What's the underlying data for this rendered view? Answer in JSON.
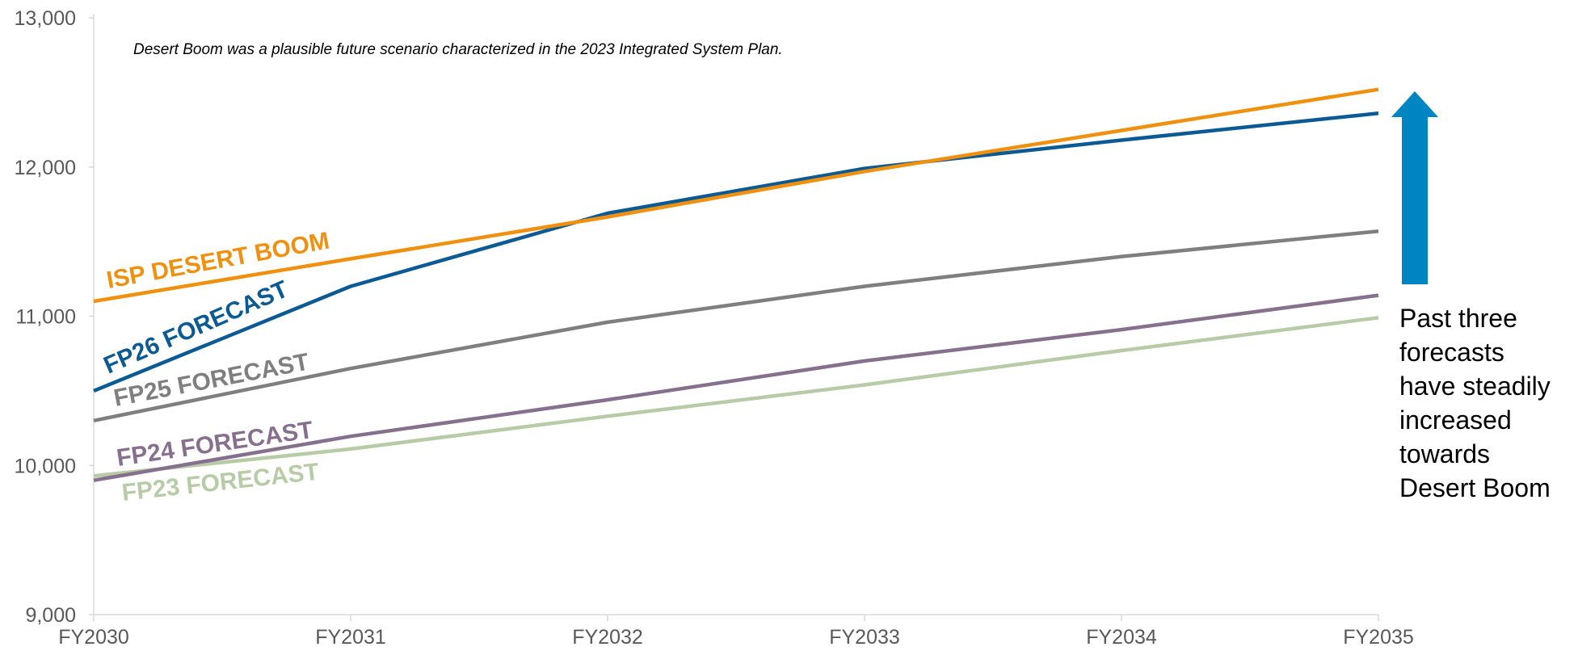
{
  "chart_data": {
    "type": "line",
    "categories": [
      "FY2030",
      "FY2031",
      "FY2032",
      "FY2033",
      "FY2034",
      "FY2035"
    ],
    "ylim": [
      9000,
      13000
    ],
    "yticks": [
      "9,000",
      "10,000",
      "11,000",
      "12,000",
      "13,000"
    ],
    "ytick_values": [
      9000,
      10000,
      11000,
      12000,
      13000
    ],
    "grid": false,
    "annotation": "Desert Boom was a plausible future scenario characterized in the 2023 Integrated System Plan.",
    "callout_lines": [
      "Past three",
      "forecasts",
      "have steadily",
      "increased",
      "towards",
      "Desert Boom"
    ],
    "arrow_color": "#0085C3",
    "series": [
      {
        "name": "ISP DESERT BOOM",
        "color": "#F0900F",
        "values": [
          11100,
          11385,
          11665,
          11970,
          12245,
          12520
        ]
      },
      {
        "name": "FP26 FORECAST",
        "color": "#0C5A94",
        "values": [
          10500,
          11200,
          11690,
          11990,
          12180,
          12360
        ]
      },
      {
        "name": "FP25 FORECAST",
        "color": "#7F7F7F",
        "values": [
          10300,
          10650,
          10960,
          11200,
          11400,
          11570
        ]
      },
      {
        "name": "FP24 FORECAST",
        "color": "#87708E",
        "values": [
          9900,
          10195,
          10440,
          10700,
          10910,
          11140
        ]
      },
      {
        "name": "FP23 FORECAST",
        "color": "#B8CBA7",
        "values": [
          9930,
          10110,
          10330,
          10540,
          10770,
          10990
        ]
      }
    ]
  }
}
